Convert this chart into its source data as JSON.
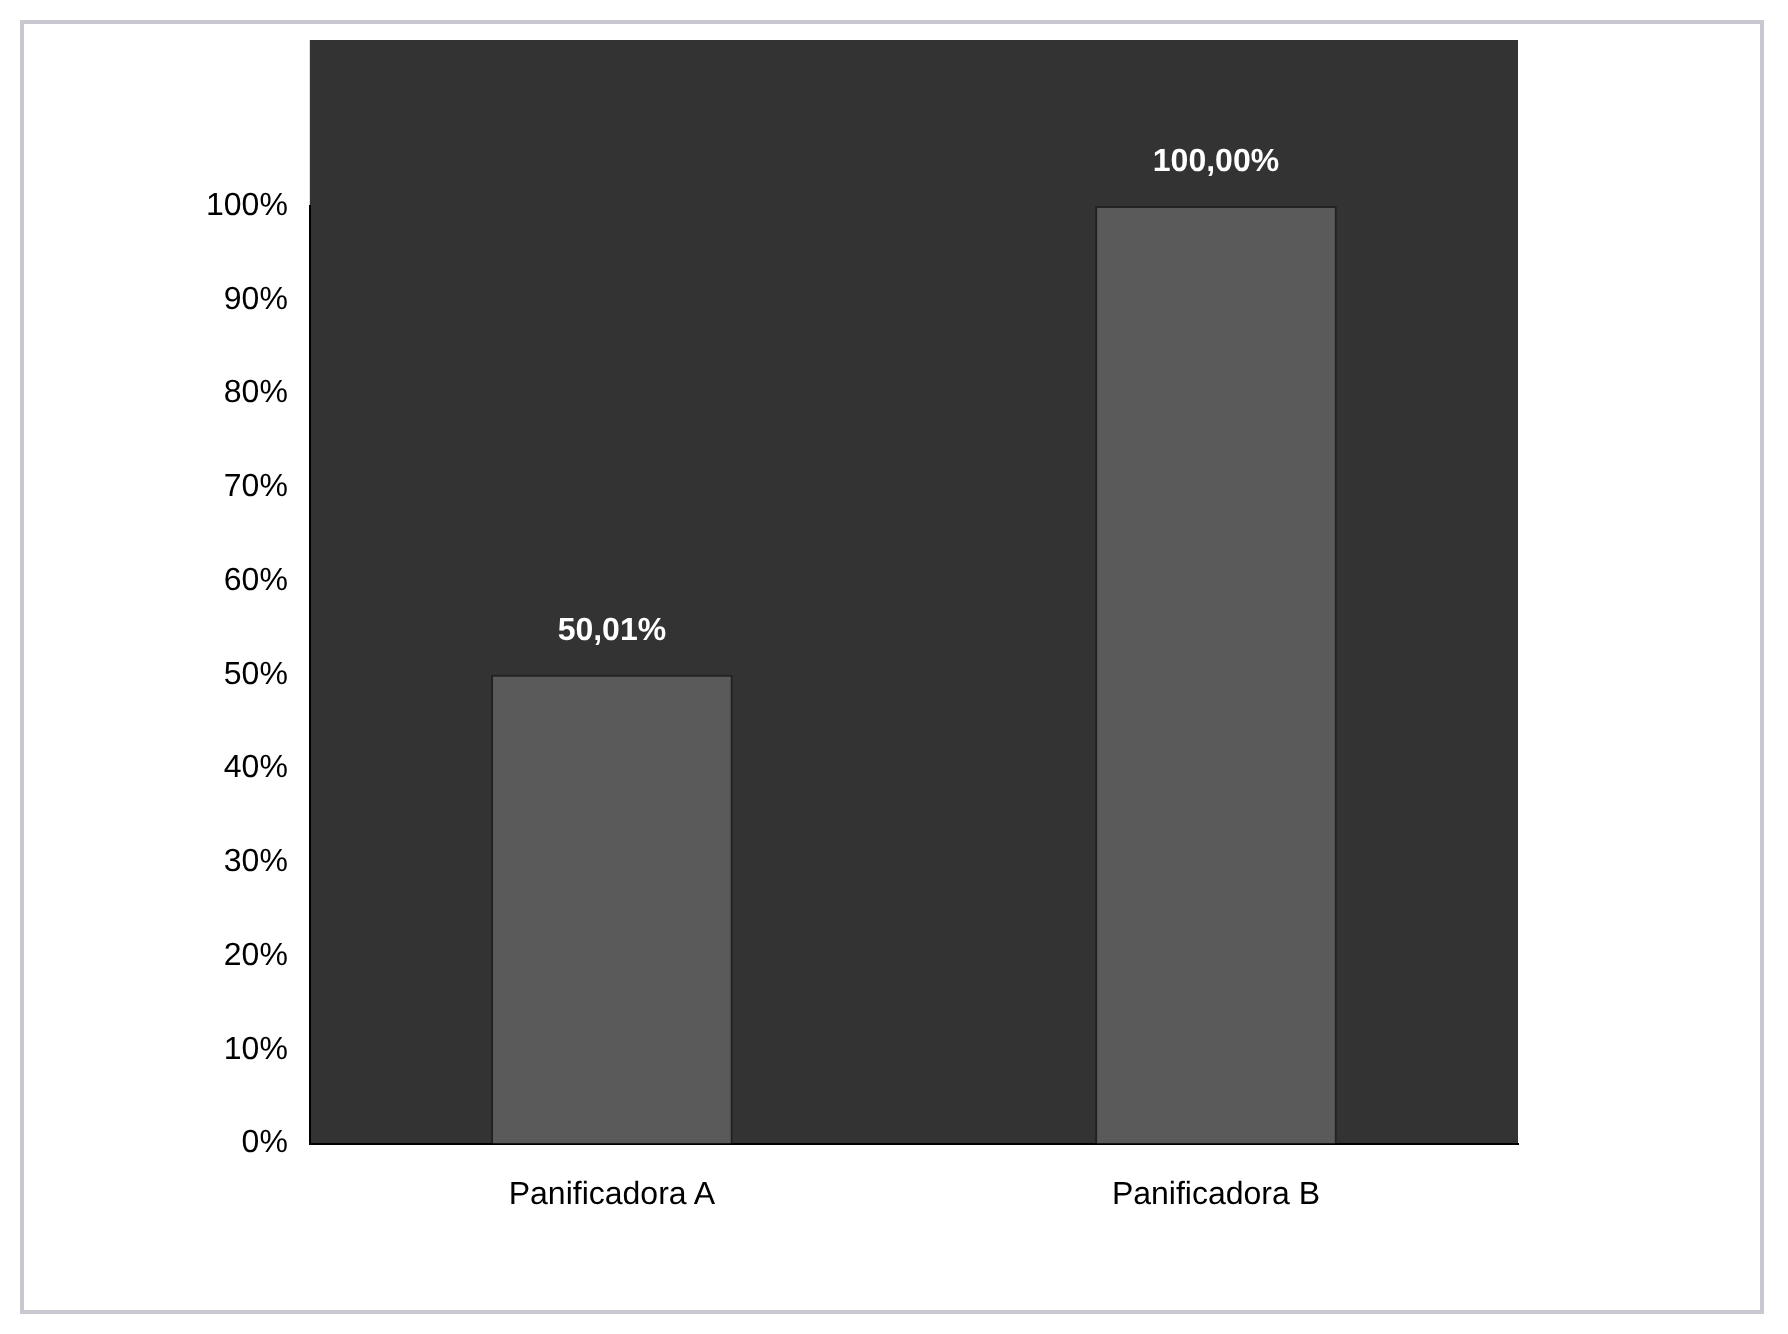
{
  "chart_data": {
    "type": "bar",
    "categories": [
      "Panificadora A",
      "Panificadora B"
    ],
    "values": [
      50.01,
      100
    ],
    "value_labels": [
      "50,01%",
      "100,00%"
    ],
    "color": "#5a5a5a",
    "ylim": [
      0,
      100
    ],
    "yticks": [
      {
        "value": 0,
        "label": "0%"
      },
      {
        "value": 10,
        "label": "10%"
      },
      {
        "value": 20,
        "label": "20%"
      },
      {
        "value": 30,
        "label": "30%"
      },
      {
        "value": 40,
        "label": "40%"
      },
      {
        "value": 50,
        "label": "50%"
      },
      {
        "value": 60,
        "label": "60%"
      },
      {
        "value": 70,
        "label": "70%"
      },
      {
        "value": 80,
        "label": "80%"
      },
      {
        "value": 90,
        "label": "90%"
      },
      {
        "value": 100,
        "label": "100%"
      }
    ],
    "grid": false,
    "legend": false
  }
}
